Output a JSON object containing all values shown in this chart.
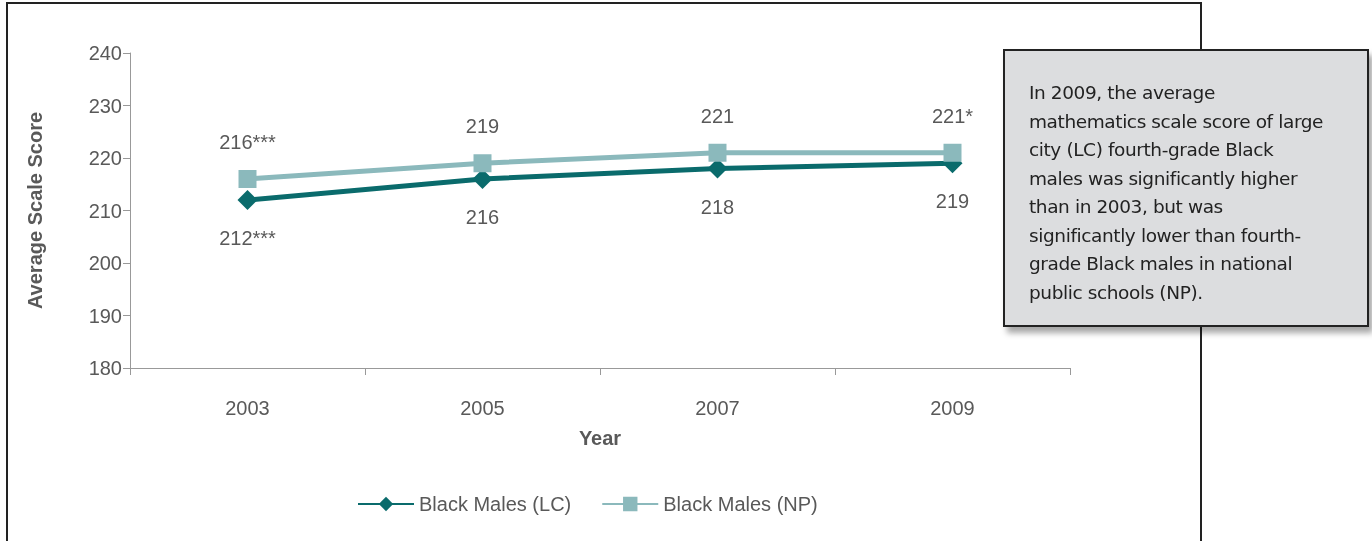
{
  "chart_data": {
    "type": "line",
    "xlabel": "Year",
    "ylabel": "Average Scale Score",
    "categories": [
      "2003",
      "2005",
      "2007",
      "2009"
    ],
    "ylim": [
      180,
      240
    ],
    "yticks": [
      180,
      190,
      200,
      210,
      220,
      230,
      240
    ],
    "grid": false,
    "legend": "bottom",
    "series": [
      {
        "name": "Black Males (LC)",
        "color": "#0a6b6c",
        "marker": "diamond",
        "values": [
          212,
          216,
          218,
          219
        ],
        "value_labels": [
          "212***",
          "216",
          "218",
          "219"
        ]
      },
      {
        "name": "Black Males (NP)",
        "color": "#8bb9bc",
        "marker": "square",
        "values": [
          216,
          219,
          221,
          221
        ],
        "value_labels": [
          "216***",
          "219",
          "221",
          "221*"
        ]
      }
    ],
    "annotations": [
      "In 2009, the average mathematics scale score of large city (LC) fourth-grade Black males was significantly higher than in 2003, but was significantly lower than fourth-grade Black males in national public schools (NP)."
    ]
  }
}
